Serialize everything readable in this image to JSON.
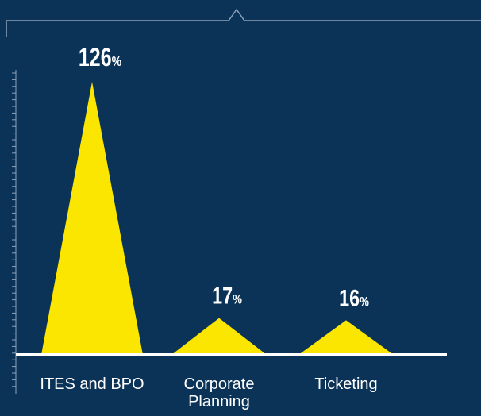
{
  "chart_data": {
    "type": "area",
    "categories": [
      "ITES and BPO",
      "Corporate Planning",
      "Ticketing"
    ],
    "category_lines": [
      [
        "ITES and BPO"
      ],
      [
        "Corporate",
        "Planning"
      ],
      [
        "Ticketing"
      ]
    ],
    "values": [
      126,
      17,
      16
    ],
    "value_unit": "%",
    "ylim": [
      0,
      126
    ],
    "colors": {
      "background": "#0b3358",
      "peak": "#fae600",
      "axis": "#ffffff",
      "frame": "#8fa3b8"
    }
  }
}
